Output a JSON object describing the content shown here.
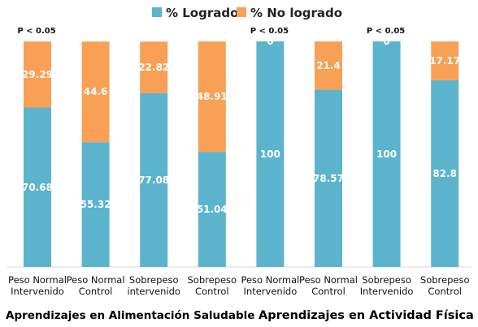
{
  "chart_data": {
    "type": "bar",
    "stacked": true,
    "percent_stacked": true,
    "categories": [
      [
        "Peso Normal",
        "Intervenido"
      ],
      [
        "Peso Normal",
        "Control"
      ],
      [
        "Sobrepeso",
        "intervenido"
      ],
      [
        "Sobrepeso",
        "Control"
      ],
      [
        "Peso Normal",
        "Intervenido"
      ],
      [
        "Peso Normal",
        "Control"
      ],
      [
        "Sobrepeso",
        "Intervenido"
      ],
      [
        "Sobrepeso",
        "Control"
      ]
    ],
    "series": [
      {
        "name": "% Logrado",
        "color": "#5BB4CC",
        "values": [
          70.68,
          55.32,
          77.08,
          51.04,
          100,
          78.57,
          100,
          82.8
        ]
      },
      {
        "name": "% No logrado",
        "color": "#F8A056",
        "values": [
          29.29,
          44.6,
          22.82,
          48.91,
          0,
          21.4,
          0,
          17.17
        ]
      }
    ],
    "data_labels": [
      [
        "70.68",
        "55.32",
        "77.08",
        "51.04",
        "100",
        "78.57",
        "100",
        "82.8"
      ],
      [
        "29.29",
        "44.6",
        "22.82",
        "48.91",
        "0",
        "21.4",
        "0",
        "17.17"
      ]
    ],
    "significance": [
      {
        "category_index": 0,
        "text": "P < 0.05"
      },
      {
        "category_index": 4,
        "text": "P < 0.05"
      },
      {
        "category_index": 6,
        "text": "P < 0.05"
      }
    ],
    "group_labels": [
      {
        "text": "Aprendizajes en Alimentación Saludable",
        "from": 0,
        "to": 3
      },
      {
        "text": "Aprendizajes en Actividad Física",
        "from": 4,
        "to": 7
      }
    ],
    "ylim": [
      0,
      100
    ],
    "grid": false,
    "legend": "top"
  }
}
